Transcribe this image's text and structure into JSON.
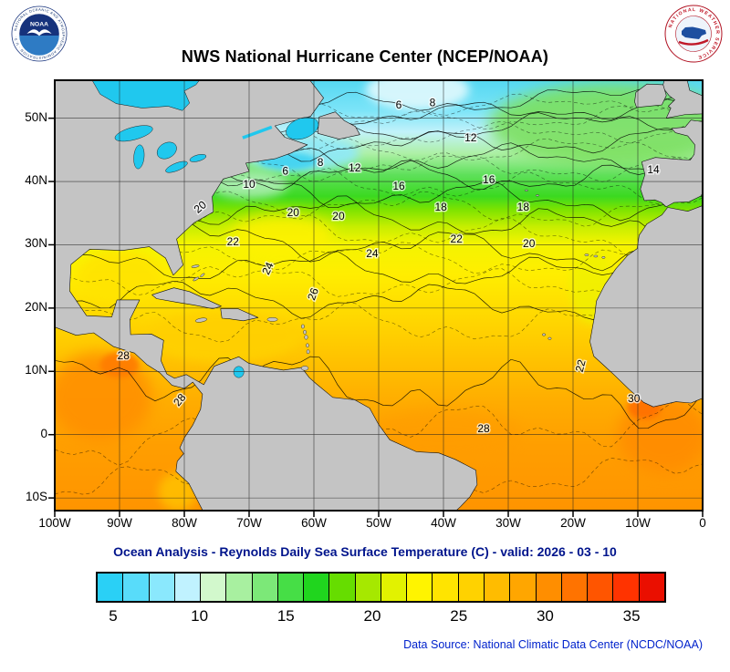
{
  "header": {
    "title": "NWS National Hurricane Center (NCEP/NOAA)",
    "noaa_logo": {
      "label": "NOAA",
      "ring_text": "NATIONAL OCEANIC AND ATMOSPHERIC ADMINISTRATION · U.S. DEPARTMENT OF COMMERCE"
    },
    "nws_logo": {
      "ring_text": "NATIONAL WEATHER SERVICE"
    }
  },
  "map": {
    "x_ticks": [
      {
        "label": "100W",
        "lon": -100
      },
      {
        "label": "90W",
        "lon": -90
      },
      {
        "label": "80W",
        "lon": -80
      },
      {
        "label": "70W",
        "lon": -70
      },
      {
        "label": "60W",
        "lon": -60
      },
      {
        "label": "50W",
        "lon": -50
      },
      {
        "label": "40W",
        "lon": -40
      },
      {
        "label": "30W",
        "lon": -30
      },
      {
        "label": "20W",
        "lon": -20
      },
      {
        "label": "10W",
        "lon": -10
      },
      {
        "label": "0",
        "lon": 0
      }
    ],
    "y_ticks": [
      {
        "label": "50N",
        "lat": 50
      },
      {
        "label": "40N",
        "lat": 40
      },
      {
        "label": "30N",
        "lat": 30
      },
      {
        "label": "20N",
        "lat": 20
      },
      {
        "label": "10N",
        "lat": 10
      },
      {
        "label": "0",
        "lat": 0
      },
      {
        "label": "10S",
        "lat": -10
      }
    ],
    "contour_labels": [
      {
        "v": "6",
        "lon": -46.9,
        "lat": 52.1
      },
      {
        "v": "8",
        "lon": -41.7,
        "lat": 52.5
      },
      {
        "v": "12",
        "lon": -35.8,
        "lat": 46.9
      },
      {
        "v": "10",
        "lon": -70.0,
        "lat": 39.6
      },
      {
        "v": "6",
        "lon": -64.4,
        "lat": 41.7
      },
      {
        "v": "8",
        "lon": -59.0,
        "lat": 43.0
      },
      {
        "v": "12",
        "lon": -53.7,
        "lat": 42.2
      },
      {
        "v": "16",
        "lon": -46.9,
        "lat": 39.3
      },
      {
        "v": "16",
        "lon": -33.0,
        "lat": 40.3
      },
      {
        "v": "18",
        "lon": -40.4,
        "lat": 36.0
      },
      {
        "v": "18",
        "lon": -27.7,
        "lat": 36.0
      },
      {
        "v": "14",
        "lon": -7.6,
        "lat": 41.9
      },
      {
        "v": "20",
        "lon": -77.2,
        "lat": 36.1,
        "rot": -40
      },
      {
        "v": "20",
        "lon": -63.2,
        "lat": 35.1
      },
      {
        "v": "20",
        "lon": -56.2,
        "lat": 34.5
      },
      {
        "v": "22",
        "lon": -72.5,
        "lat": 30.5
      },
      {
        "v": "22",
        "lon": -38.0,
        "lat": 30.9
      },
      {
        "v": "20",
        "lon": -26.8,
        "lat": 30.2
      },
      {
        "v": "24",
        "lon": -66.6,
        "lat": 26.6,
        "rot": -65
      },
      {
        "v": "24",
        "lon": -51.0,
        "lat": 28.6
      },
      {
        "v": "26",
        "lon": -59.6,
        "lat": 22.6,
        "rot": -70
      },
      {
        "v": "22",
        "lon": -18.3,
        "lat": 11.3,
        "rot": -75
      },
      {
        "v": "28",
        "lon": -89.4,
        "lat": 12.5
      },
      {
        "v": "28",
        "lon": -80.3,
        "lat": 5.7,
        "rot": -50
      },
      {
        "v": "28",
        "lon": -33.8,
        "lat": 1.0
      },
      {
        "v": "30",
        "lon": -10.6,
        "lat": 5.7
      }
    ]
  },
  "caption": "Ocean Analysis - Reynolds Daily Sea Surface Temperature (C) - valid: 2026 - 03 - 10",
  "colorbar": {
    "min": 4,
    "max": 37,
    "cell_colors": [
      "#2ad0f6",
      "#58dcfa",
      "#8ae8fd",
      "#c0f2ff",
      "#d2f8cc",
      "#a8f0a0",
      "#7ce878",
      "#46de46",
      "#20d51e",
      "#66dd00",
      "#a6e800",
      "#e2f200",
      "#fff400",
      "#ffe400",
      "#ffd200",
      "#ffbc00",
      "#ffa600",
      "#ff8e00",
      "#ff7300",
      "#ff5500",
      "#ff3300",
      "#ea0f00"
    ],
    "ticks": [
      {
        "label": "5",
        "value": 5
      },
      {
        "label": "10",
        "value": 10
      },
      {
        "label": "15",
        "value": 15
      },
      {
        "label": "20",
        "value": 20
      },
      {
        "label": "25",
        "value": 25
      },
      {
        "label": "30",
        "value": 30
      },
      {
        "label": "35",
        "value": 35
      }
    ]
  },
  "footer": {
    "data_source": "Data Source: National Climatic Data Center (NCDC/NOAA)"
  },
  "chart_data": {
    "type": "heatmap",
    "subtype": "sst-contour-map",
    "title": "NWS National Hurricane Center (NCEP/NOAA)",
    "subtitle": "Ocean Analysis - Reynolds Daily Sea Surface Temperature (C) - valid: 2026 - 03 - 10",
    "variable": "Reynolds Daily Sea Surface Temperature (C)",
    "valid_date": "2026 - 03 - 10",
    "lon_ticks": [
      "100W",
      "90W",
      "80W",
      "70W",
      "60W",
      "50W",
      "40W",
      "30W",
      "20W",
      "10W",
      "0"
    ],
    "lat_ticks": [
      "50N",
      "40N",
      "30N",
      "20N",
      "10N",
      "0",
      "10S"
    ],
    "labeled_isotherms_c": [
      6,
      8,
      10,
      12,
      14,
      16,
      18,
      20,
      22,
      24,
      26,
      28,
      30
    ],
    "colorbar_ticks_c": [
      5,
      10,
      15,
      20,
      25,
      30,
      35
    ],
    "grid": true,
    "legend_position": "bottom",
    "data_source": "National Climatic Data Center (NCDC/NOAA)"
  }
}
